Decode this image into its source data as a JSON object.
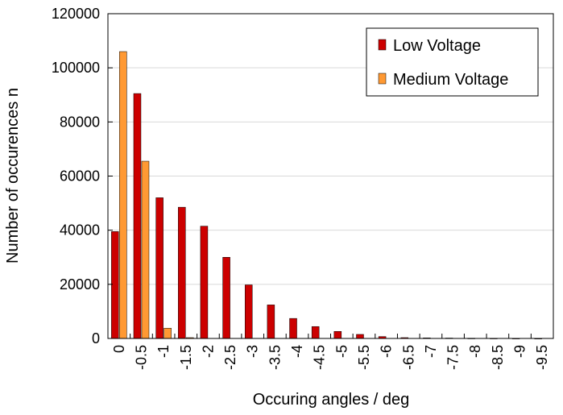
{
  "chart_data": {
    "type": "bar",
    "title": "",
    "xlabel": "Occuring angles / deg",
    "ylabel": "Number of occurences n",
    "ylim": [
      0,
      120000
    ],
    "yticks": [
      "0",
      "20000",
      "40000",
      "60000",
      "80000",
      "100000",
      "120000"
    ],
    "categories": [
      "0",
      "-0.5",
      "-1",
      "-1.5",
      "-2",
      "-2.5",
      "-3",
      "-3.5",
      "-4",
      "-4.5",
      "-5",
      "-5.5",
      "-6",
      "-6.5",
      "-7",
      "-7.5",
      "-8",
      "-8.5",
      "-9",
      "-9.5"
    ],
    "grid": true,
    "legend_position": "top-right",
    "series": [
      {
        "name": "Low Voltage",
        "color": "#cc0000",
        "values": [
          39500,
          90500,
          52000,
          48500,
          41500,
          30000,
          19800,
          12400,
          7400,
          4400,
          2600,
          1500,
          700,
          300,
          200,
          150,
          100,
          80,
          60,
          40
        ]
      },
      {
        "name": "Medium Voltage",
        "color": "#ff9933",
        "values": [
          106000,
          65500,
          3800,
          300,
          0,
          0,
          0,
          0,
          0,
          0,
          0,
          0,
          0,
          0,
          0,
          0,
          0,
          0,
          0,
          0
        ]
      }
    ]
  }
}
